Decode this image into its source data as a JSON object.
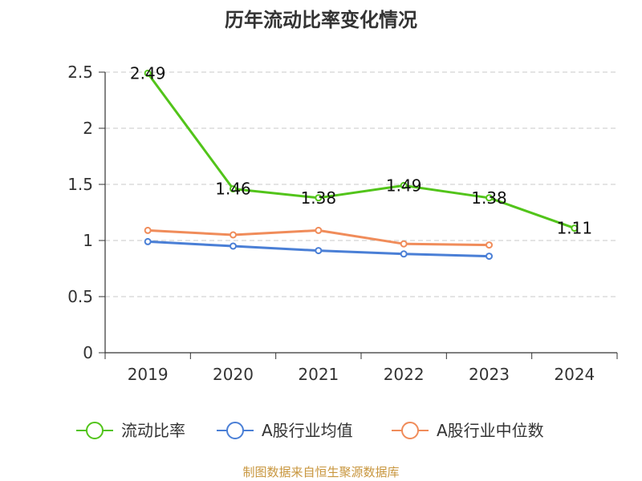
{
  "chart_data": {
    "type": "line",
    "title": "历年流动比率变化情况",
    "categories": [
      "2019",
      "2020",
      "2021",
      "2022",
      "2023",
      "2024"
    ],
    "ylim": [
      0,
      2.5
    ],
    "yticks": [
      "0",
      "0.5",
      "1",
      "1.5",
      "2",
      "2.5"
    ],
    "grid": true,
    "legend_position": "bottom",
    "series": [
      {
        "name": "流动比率",
        "color": "#52c41a",
        "values": [
          2.49,
          1.46,
          1.38,
          1.49,
          1.38,
          1.11
        ],
        "labels": [
          "2.49",
          "1.46",
          "1.38",
          "1.49",
          "1.38",
          "1.11"
        ]
      },
      {
        "name": "A股行业均值",
        "color": "#4a7fd6",
        "values": [
          0.99,
          0.95,
          0.91,
          0.88,
          0.86,
          null
        ]
      },
      {
        "name": "A股行业中位数",
        "color": "#f08c5a",
        "values": [
          1.09,
          1.05,
          1.09,
          0.97,
          0.96,
          null
        ]
      }
    ],
    "source": "制图数据来自恒生聚源数据库"
  }
}
